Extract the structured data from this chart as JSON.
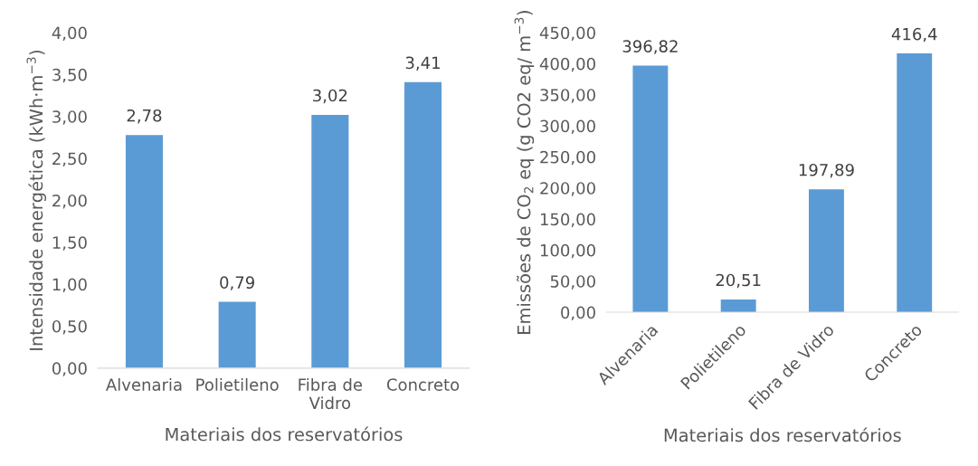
{
  "chart_data": [
    {
      "type": "bar",
      "categories": [
        "Alvenaria",
        "Polietileno",
        "Fibra de\nVidro",
        "Concreto"
      ],
      "values": [
        2.78,
        0.79,
        3.02,
        3.41
      ],
      "color": "#5b9bd5",
      "value_labels": [
        "2,78",
        "0,79",
        "3,02",
        "3,41"
      ],
      "xlabel": "Materiais dos reservatórios",
      "ylabel": "Intensidade energética (kWh·m$^{−3}$)",
      "ylim": [
        0,
        4
      ],
      "yticks": [
        {
          "value": 0,
          "label": "0,00"
        },
        {
          "value": 0.5,
          "label": "0,50"
        },
        {
          "value": 1,
          "label": "1,00"
        },
        {
          "value": 1.5,
          "label": "1,50"
        },
        {
          "value": 2,
          "label": "2,00"
        },
        {
          "value": 2.5,
          "label": "2,50"
        },
        {
          "value": 3,
          "label": "3,00"
        },
        {
          "value": 3.5,
          "label": "3,50"
        },
        {
          "value": 4,
          "label": "4,00"
        }
      ],
      "grid": false
    },
    {
      "type": "bar",
      "categories": [
        "Alvenaria",
        "Polietileno",
        "Fibra de Vidro",
        "Concreto"
      ],
      "values": [
        396.82,
        20.51,
        197.89,
        416.4
      ],
      "color": "#5b9bd5",
      "value_labels": [
        "396,82",
        "20,51",
        "197,89",
        "416,4"
      ],
      "xlabel": "Materiais dos reservatórios",
      "ylabel": "Emissões de CO$_{2}$ eq (g CO2 eq/ m$^{−3}$)",
      "ylim": [
        0,
        450
      ],
      "yticks": [
        {
          "value": 0,
          "label": "0,00"
        },
        {
          "value": 50,
          "label": "50,00"
        },
        {
          "value": 100,
          "label": "100,00"
        },
        {
          "value": 150,
          "label": "150,00"
        },
        {
          "value": 200,
          "label": "200,00"
        },
        {
          "value": 250,
          "label": "250,00"
        },
        {
          "value": 300,
          "label": "300,00"
        },
        {
          "value": 350,
          "label": "350,00"
        },
        {
          "value": 400,
          "label": "400,00"
        },
        {
          "value": 450,
          "label": "450,00"
        }
      ],
      "grid": false
    }
  ]
}
